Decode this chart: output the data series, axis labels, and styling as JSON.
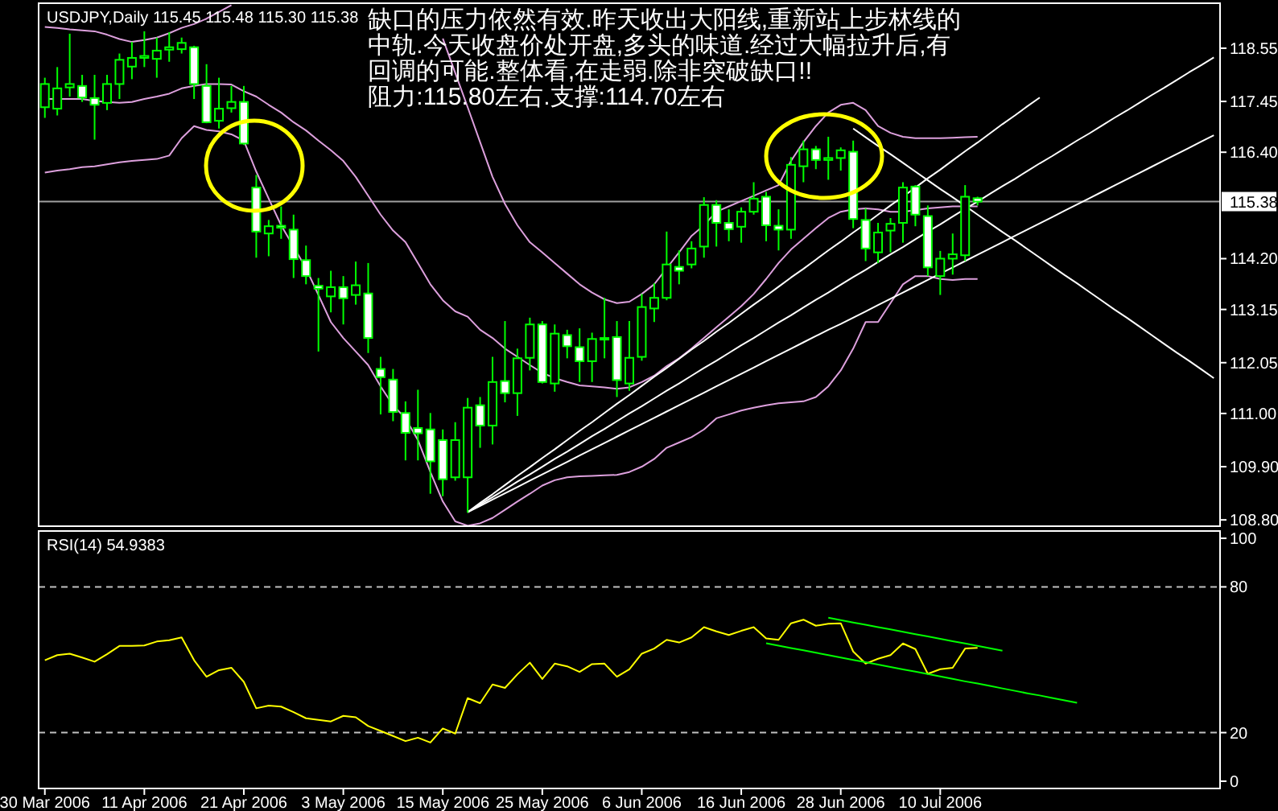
{
  "chart_data": [
    {
      "type": "candlestick",
      "title": "USDJPY,Daily  115.45 115.48 115.30 115.38",
      "annotations": [
        "缺口的压力依然有效.昨天收出大阳线,重新站上步林线的",
        "中轨.今天收盘价处开盘,多头的味道.经过大幅拉升后,有",
        "回调的可能.整体看,在走弱.除非突破缺口!!",
        "阻力:115.80左右.支撑:114.70左右"
      ],
      "color": "#00ff00",
      "categories": [
        null,
        null,
        null,
        null,
        null,
        null,
        null,
        null,
        null,
        null,
        null,
        null,
        null,
        null,
        null,
        null,
        null,
        null,
        null,
        null,
        null,
        null,
        null,
        null,
        null,
        null,
        null,
        null,
        null,
        null,
        null,
        null,
        null,
        null,
        null,
        null,
        null,
        null,
        null,
        null,
        null,
        null,
        null,
        null,
        null,
        null,
        null,
        null,
        null,
        null,
        null,
        null,
        null,
        null,
        null,
        null,
        null,
        null,
        null,
        null,
        null,
        null,
        null,
        null,
        null,
        null,
        null,
        null,
        null,
        null,
        null,
        null,
        null,
        null,
        null,
        null,
        null,
        null,
        null,
        null,
        null,
        null,
        null,
        null,
        null,
        null,
        null,
        null,
        null,
        null,
        null,
        null,
        null,
        null,
        null
      ],
      "ohlc": [
        [
          117.33,
          117.94,
          117.11,
          117.81
        ],
        [
          117.3,
          118.16,
          117.16,
          117.72
        ],
        [
          117.74,
          118.85,
          117.55,
          117.81
        ],
        [
          117.77,
          118.0,
          117.44,
          117.53
        ],
        [
          117.52,
          118.0,
          116.66,
          117.38
        ],
        [
          117.42,
          118.0,
          117.27,
          117.81
        ],
        [
          117.81,
          118.44,
          117.5,
          118.31
        ],
        [
          118.17,
          118.68,
          117.91,
          118.35
        ],
        [
          118.35,
          118.9,
          118.16,
          118.39
        ],
        [
          118.33,
          118.77,
          117.94,
          118.5
        ],
        [
          118.52,
          118.88,
          118.27,
          118.57
        ],
        [
          118.53,
          118.77,
          118.44,
          118.66
        ],
        [
          118.57,
          118.6,
          117.5,
          117.81
        ],
        [
          117.77,
          118.22,
          117.0,
          117.02
        ],
        [
          117.05,
          117.94,
          116.89,
          117.3
        ],
        [
          117.31,
          117.77,
          117.22,
          117.44
        ],
        [
          117.44,
          117.77,
          116.55,
          116.58
        ],
        [
          115.67,
          115.93,
          114.22,
          114.76
        ],
        [
          114.72,
          115.0,
          114.25,
          114.87
        ],
        [
          114.88,
          115.28,
          114.61,
          114.84
        ],
        [
          114.8,
          115.11,
          113.8,
          114.19
        ],
        [
          114.17,
          114.47,
          113.67,
          113.84
        ],
        [
          113.64,
          113.8,
          112.28,
          113.58
        ],
        [
          113.42,
          113.95,
          113.09,
          113.61
        ],
        [
          113.61,
          113.84,
          112.84,
          113.38
        ],
        [
          113.45,
          114.14,
          113.25,
          113.65
        ],
        [
          113.48,
          114.11,
          112.25,
          112.56
        ],
        [
          111.92,
          112.17,
          110.98,
          111.75
        ],
        [
          111.7,
          111.92,
          110.84,
          111.03
        ],
        [
          111.01,
          111.25,
          110.03,
          110.6
        ],
        [
          110.7,
          111.49,
          110.03,
          110.59
        ],
        [
          110.67,
          111.01,
          109.34,
          110.01
        ],
        [
          110.45,
          110.67,
          109.29,
          109.64
        ],
        [
          109.68,
          110.82,
          109.61,
          110.45
        ],
        [
          109.68,
          111.32,
          108.95,
          111.12
        ],
        [
          111.17,
          111.34,
          110.29,
          110.75
        ],
        [
          110.75,
          112.17,
          110.36,
          111.65
        ],
        [
          111.67,
          112.91,
          111.23,
          111.42
        ],
        [
          111.42,
          112.34,
          110.95,
          112.14
        ],
        [
          112.15,
          112.98,
          111.89,
          112.84
        ],
        [
          112.84,
          112.91,
          111.62,
          111.65
        ],
        [
          111.62,
          112.84,
          111.45,
          112.65
        ],
        [
          112.62,
          112.73,
          112.14,
          112.39
        ],
        [
          112.37,
          112.76,
          111.65,
          112.08
        ],
        [
          112.08,
          112.67,
          111.65,
          112.54
        ],
        [
          112.54,
          113.39,
          112.14,
          112.56
        ],
        [
          112.58,
          112.91,
          111.34,
          111.69
        ],
        [
          111.62,
          112.91,
          111.47,
          112.15
        ],
        [
          112.17,
          113.47,
          112.09,
          113.2
        ],
        [
          113.17,
          113.69,
          112.89,
          113.39
        ],
        [
          113.39,
          114.76,
          113.34,
          114.08
        ],
        [
          114.03,
          114.37,
          113.67,
          113.95
        ],
        [
          114.08,
          114.56,
          114.0,
          114.41
        ],
        [
          114.45,
          115.47,
          114.22,
          115.31
        ],
        [
          115.31,
          115.41,
          114.45,
          114.94
        ],
        [
          114.94,
          115.22,
          114.56,
          114.81
        ],
        [
          114.86,
          115.26,
          114.53,
          115.17
        ],
        [
          115.17,
          115.78,
          115.11,
          115.44
        ],
        [
          115.48,
          115.58,
          114.56,
          114.89
        ],
        [
          114.88,
          115.22,
          114.37,
          114.8
        ],
        [
          114.8,
          116.3,
          114.61,
          116.14
        ],
        [
          116.11,
          116.64,
          115.78,
          116.46
        ],
        [
          116.46,
          116.53,
          116.05,
          116.24
        ],
        [
          116.24,
          116.72,
          115.83,
          116.28
        ],
        [
          116.28,
          116.5,
          116.02,
          116.44
        ],
        [
          116.41,
          116.64,
          114.83,
          115.02
        ],
        [
          115.0,
          115.24,
          114.15,
          114.41
        ],
        [
          114.33,
          114.94,
          114.11,
          114.74
        ],
        [
          114.78,
          115.04,
          114.33,
          114.92
        ],
        [
          114.94,
          115.78,
          114.53,
          115.67
        ],
        [
          115.69,
          115.72,
          114.87,
          115.11
        ],
        [
          115.08,
          115.3,
          113.84,
          114.02
        ],
        [
          113.84,
          114.36,
          113.45,
          114.2
        ],
        [
          114.2,
          114.72,
          113.87,
          114.29
        ],
        [
          114.27,
          115.72,
          114.15,
          115.48
        ],
        [
          115.45,
          115.48,
          115.3,
          115.38
        ],
        null,
        null,
        null,
        null,
        null,
        null,
        null,
        null,
        null,
        null,
        null,
        null,
        null,
        null,
        null,
        null,
        null,
        null,
        null
      ],
      "series": [
        {
          "type": "line",
          "color": "#dda0dd",
          "values": [
            118.99,
            118.97,
            118.94,
            118.92,
            118.9,
            118.83,
            118.74,
            118.68,
            118.72,
            118.77,
            118.86,
            118.97,
            119.05,
            119.16,
            119.3,
            119.44,
            null,
            null,
            null,
            null,
            null,
            null,
            null,
            null,
            null,
            null,
            null,
            null,
            null,
            null,
            null,
            null,
            118.75,
            118.04,
            117.33,
            116.61,
            115.89,
            115.33,
            114.89,
            114.54,
            114.33,
            114.11,
            113.89,
            113.67,
            113.5,
            113.36,
            113.28,
            113.31,
            113.47,
            113.67,
            114.0,
            114.33,
            114.67,
            114.89,
            115.17,
            115.28,
            115.39,
            115.5,
            115.61,
            115.72,
            116.22,
            116.61,
            116.94,
            117.22,
            117.38,
            117.42,
            117.27,
            116.94,
            116.8,
            116.72,
            116.69,
            116.69,
            116.69,
            116.7,
            116.71,
            116.72,
            null,
            null,
            null,
            null,
            null,
            null,
            null,
            null,
            null,
            null,
            null,
            null,
            null,
            null,
            null,
            null,
            null,
            null,
            null
          ]
        },
        {
          "type": "line",
          "color": "#dda0dd",
          "values": [
            117.5,
            117.5,
            117.5,
            117.5,
            117.46,
            117.44,
            117.42,
            117.44,
            117.5,
            117.55,
            117.61,
            117.72,
            117.77,
            117.81,
            117.81,
            117.8,
            117.66,
            117.55,
            117.38,
            117.22,
            117.02,
            116.85,
            116.64,
            116.44,
            116.22,
            115.89,
            115.5,
            115.11,
            114.78,
            114.54,
            114.11,
            113.67,
            113.34,
            113.11,
            113.0,
            112.73,
            112.56,
            112.34,
            112.17,
            112.0,
            111.84,
            111.73,
            111.65,
            111.58,
            111.56,
            111.54,
            111.51,
            111.54,
            111.65,
            111.78,
            111.98,
            112.14,
            112.34,
            112.56,
            112.78,
            113.0,
            113.22,
            113.47,
            113.78,
            114.11,
            114.39,
            114.61,
            114.83,
            115.04,
            115.17,
            115.22,
            115.24,
            115.22,
            115.17,
            115.17,
            115.2,
            115.24,
            115.26,
            115.28,
            115.28,
            115.28,
            null,
            null,
            null,
            null,
            null,
            null,
            null,
            null,
            null,
            null,
            null,
            null,
            null,
            null,
            null,
            null,
            null,
            null,
            null
          ]
        },
        {
          "type": "line",
          "color": "#dda0dd",
          "values": [
            115.98,
            116.02,
            116.05,
            116.09,
            116.11,
            116.15,
            116.19,
            116.22,
            116.24,
            116.26,
            116.33,
            116.69,
            116.94,
            116.86,
            116.83,
            116.77,
            116.64,
            116.0,
            115.44,
            114.89,
            114.45,
            114.0,
            113.45,
            112.89,
            112.56,
            112.28,
            112.0,
            111.56,
            111.17,
            110.9,
            110.45,
            109.79,
            109.18,
            108.77,
            108.68,
            108.73,
            108.84,
            109.01,
            109.18,
            109.34,
            109.51,
            109.62,
            109.68,
            109.7,
            109.71,
            109.72,
            109.73,
            109.79,
            109.9,
            110.06,
            110.29,
            110.4,
            110.51,
            110.67,
            110.9,
            110.98,
            111.06,
            111.12,
            111.17,
            111.21,
            111.23,
            111.25,
            111.34,
            111.56,
            111.89,
            112.34,
            112.89,
            112.89,
            113.28,
            113.67,
            113.84,
            113.84,
            113.78,
            113.76,
            113.78,
            113.78,
            null,
            null,
            null,
            null,
            null,
            null,
            null,
            null,
            null,
            null,
            null,
            null,
            null,
            null,
            null,
            null,
            null,
            null,
            null
          ]
        },
        {
          "type": "line",
          "color": "#ffffff",
          "values": [
            null,
            null,
            null,
            null,
            null,
            null,
            null,
            null,
            null,
            null,
            null,
            null,
            null,
            null,
            null,
            null,
            null,
            null,
            null,
            null,
            null,
            null,
            null,
            null,
            null,
            null,
            null,
            null,
            null,
            null,
            null,
            null,
            null,
            null,
            108.96,
            109.15,
            109.33,
            109.52,
            109.71,
            109.89,
            110.08,
            110.26,
            110.45,
            110.64,
            110.82,
            111.01,
            111.2,
            111.38,
            111.57,
            111.76,
            111.94,
            112.13,
            112.32,
            112.5,
            112.69,
            112.87,
            113.06,
            113.25,
            113.43,
            113.62,
            113.81,
            113.99,
            114.18,
            114.37,
            114.55,
            114.74,
            114.92,
            115.11,
            115.3,
            115.48,
            115.67,
            115.86,
            116.04,
            116.23,
            116.42,
            116.6,
            116.79,
            116.98,
            117.16,
            117.35,
            117.53,
            null,
            null,
            null,
            null,
            null,
            null,
            null,
            null,
            null,
            null,
            null,
            null,
            null,
            null
          ]
        },
        {
          "type": "line",
          "color": "#ffffff",
          "values": [
            null,
            null,
            null,
            null,
            null,
            null,
            null,
            null,
            null,
            null,
            null,
            null,
            null,
            null,
            null,
            null,
            null,
            null,
            null,
            null,
            null,
            null,
            null,
            null,
            null,
            null,
            null,
            null,
            null,
            null,
            null,
            null,
            null,
            null,
            108.96,
            109.12,
            109.27,
            109.43,
            109.59,
            109.74,
            109.9,
            110.06,
            110.21,
            110.37,
            110.53,
            110.68,
            110.84,
            111.0,
            111.15,
            111.31,
            111.47,
            111.62,
            111.78,
            111.94,
            112.09,
            112.25,
            112.41,
            112.56,
            112.72,
            112.88,
            113.03,
            113.19,
            113.35,
            113.5,
            113.66,
            113.82,
            113.97,
            114.13,
            114.29,
            114.44,
            114.6,
            114.76,
            114.91,
            115.07,
            115.23,
            115.38,
            115.54,
            115.7,
            115.85,
            116.01,
            116.17,
            116.32,
            116.48,
            116.64,
            116.79,
            116.95,
            117.11,
            117.26,
            117.42,
            117.58,
            117.73,
            117.89,
            118.05,
            118.2,
            118.36
          ]
        },
        {
          "type": "line",
          "color": "#ffffff",
          "values": [
            null,
            null,
            null,
            null,
            null,
            null,
            null,
            null,
            null,
            null,
            null,
            null,
            null,
            null,
            null,
            null,
            null,
            null,
            null,
            null,
            null,
            null,
            null,
            null,
            null,
            null,
            null,
            null,
            null,
            null,
            null,
            null,
            null,
            null,
            108.96,
            109.09,
            109.22,
            109.35,
            109.48,
            109.61,
            109.74,
            109.87,
            110.0,
            110.13,
            110.26,
            110.39,
            110.52,
            110.65,
            110.78,
            110.91,
            111.04,
            111.17,
            111.3,
            111.43,
            111.56,
            111.69,
            111.82,
            111.95,
            112.08,
            112.21,
            112.34,
            112.47,
            112.6,
            112.73,
            112.85,
            112.98,
            113.11,
            113.24,
            113.37,
            113.5,
            113.63,
            113.76,
            113.89,
            114.02,
            114.15,
            114.28,
            114.41,
            114.54,
            114.67,
            114.8,
            114.93,
            115.06,
            115.19,
            115.32,
            115.45,
            115.58,
            115.71,
            115.84,
            115.97,
            116.1,
            116.23,
            116.36,
            116.49,
            116.62,
            116.75
          ]
        },
        {
          "type": "line",
          "color": "#ffffff",
          "values": [
            null,
            null,
            null,
            null,
            null,
            null,
            null,
            null,
            null,
            null,
            null,
            null,
            null,
            null,
            null,
            null,
            null,
            null,
            null,
            null,
            null,
            null,
            null,
            null,
            null,
            null,
            null,
            null,
            null,
            null,
            null,
            null,
            null,
            null,
            null,
            null,
            null,
            null,
            null,
            null,
            null,
            null,
            null,
            null,
            null,
            null,
            null,
            null,
            null,
            null,
            null,
            null,
            null,
            null,
            null,
            null,
            null,
            null,
            null,
            null,
            null,
            null,
            null,
            null,
            null,
            116.89,
            116.71,
            116.53,
            116.36,
            116.18,
            116.0,
            115.82,
            115.64,
            115.47,
            115.29,
            115.11,
            114.93,
            114.75,
            114.58,
            114.4,
            114.22,
            114.04,
            113.86,
            113.69,
            113.51,
            113.33,
            113.15,
            112.98,
            112.8,
            112.62,
            112.44,
            112.26,
            112.09,
            111.91,
            111.73
          ]
        }
      ],
      "ylim": [
        108.67,
        119.48
      ],
      "yticks": [
        118.55,
        117.45,
        {
          "value": 116.4,
          "label": "116.40"
        },
        {
          "value": 114.2,
          "label": "114.20"
        },
        113.15,
        112.05,
        {
          "value": 111,
          "label": "111.00"
        },
        {
          "value": 109.9,
          "label": "109.90"
        },
        {
          "value": 108.8,
          "label": "108.80"
        }
      ],
      "ref_lines": [
        {
          "axis": "y",
          "value": 115.38,
          "label": "115.38",
          "color": "#a0a0a0"
        }
      ],
      "tick_labels": "y"
    },
    {
      "type": "line",
      "title": "RSI(14) 54.9383",
      "categories": [
        "30 Mar 2006",
        null,
        null,
        null,
        null,
        null,
        null,
        null,
        "11 Apr 2006",
        null,
        null,
        null,
        null,
        null,
        null,
        null,
        "21 Apr 2006",
        null,
        null,
        null,
        null,
        null,
        null,
        null,
        "3 May 2006",
        null,
        null,
        null,
        null,
        null,
        null,
        null,
        "15 May 2006",
        null,
        null,
        null,
        null,
        null,
        null,
        null,
        "25 May 2006",
        null,
        null,
        null,
        null,
        null,
        null,
        null,
        "6 Jun 2006",
        null,
        null,
        null,
        null,
        null,
        null,
        null,
        "16 Jun 2006",
        null,
        null,
        null,
        null,
        null,
        null,
        null,
        "28 Jun 2006",
        null,
        null,
        null,
        null,
        null,
        null,
        null,
        "10 Jul 2006",
        null,
        null,
        null,
        null,
        null,
        null,
        null,
        null,
        null,
        null,
        null,
        null,
        null,
        null,
        null,
        null,
        null,
        null,
        null,
        null,
        null,
        null
      ],
      "series": [
        {
          "color": "#ffff00",
          "values": [
            49.8,
            51.9,
            52.5,
            50.9,
            49.2,
            52.3,
            55.7,
            55.7,
            55.9,
            57.5,
            58.0,
            59.2,
            49.8,
            43.0,
            45.7,
            46.7,
            40.9,
            30.0,
            31.1,
            30.7,
            28.4,
            25.9,
            25.2,
            24.6,
            26.9,
            26.3,
            22.7,
            20.7,
            18.6,
            16.5,
            17.9,
            15.9,
            21.7,
            19.6,
            34.2,
            32.1,
            39.8,
            38.4,
            44.0,
            48.8,
            42.1,
            48.4,
            47.3,
            45.0,
            48.2,
            48.4,
            43.0,
            46.1,
            52.5,
            54.6,
            58.2,
            57.1,
            59.2,
            63.4,
            61.7,
            60.2,
            61.9,
            63.4,
            58.8,
            58.2,
            65.0,
            66.5,
            64.0,
            64.8,
            65.0,
            53.4,
            48.4,
            50.4,
            51.9,
            56.7,
            54.4,
            44.2,
            46.1,
            46.7,
            54.6,
            54.9,
            null,
            null,
            null,
            null,
            null,
            null,
            null,
            null,
            null,
            null,
            null,
            null,
            null,
            null,
            null,
            null,
            null,
            null,
            null
          ]
        },
        {
          "type": "line",
          "color": "#00ff00",
          "values": [
            null,
            null,
            null,
            null,
            null,
            null,
            null,
            null,
            null,
            null,
            null,
            null,
            null,
            null,
            null,
            null,
            null,
            null,
            null,
            null,
            null,
            null,
            null,
            null,
            null,
            null,
            null,
            null,
            null,
            null,
            null,
            null,
            null,
            null,
            null,
            null,
            null,
            null,
            null,
            null,
            null,
            null,
            null,
            null,
            null,
            null,
            null,
            null,
            null,
            null,
            null,
            null,
            null,
            null,
            null,
            null,
            null,
            null,
            null,
            null,
            null,
            null,
            null,
            67.3,
            66.3,
            65.3,
            64.4,
            63.4,
            62.5,
            61.5,
            60.5,
            59.6,
            58.6,
            57.6,
            56.7,
            55.7,
            54.7,
            53.7,
            null,
            null,
            null,
            null,
            null,
            null,
            null,
            null,
            null,
            null,
            null,
            null,
            null,
            null,
            null,
            null,
            null
          ]
        },
        {
          "type": "line",
          "color": "#00ff00",
          "values": [
            null,
            null,
            null,
            null,
            null,
            null,
            null,
            null,
            null,
            null,
            null,
            null,
            null,
            null,
            null,
            null,
            null,
            null,
            null,
            null,
            null,
            null,
            null,
            null,
            null,
            null,
            null,
            null,
            null,
            null,
            null,
            null,
            null,
            null,
            null,
            null,
            null,
            null,
            null,
            null,
            null,
            null,
            null,
            null,
            null,
            null,
            null,
            null,
            null,
            null,
            null,
            null,
            null,
            null,
            null,
            null,
            null,
            null,
            56.8,
            55.8,
            54.8,
            53.9,
            52.9,
            51.9,
            50.9,
            49.9,
            49.0,
            48.0,
            47.0,
            46.0,
            45.1,
            44.1,
            43.1,
            42.1,
            41.1,
            40.2,
            39.2,
            38.2,
            37.2,
            36.2,
            35.3,
            34.3,
            33.3,
            32.3,
            null,
            null,
            null,
            null,
            null,
            null,
            null,
            null,
            null,
            null,
            null
          ]
        }
      ],
      "ylim": [
        -3,
        103
      ],
      "yticks": [
        100,
        80,
        20,
        0
      ],
      "ref_lines": [
        {
          "axis": "y",
          "value": 80,
          "color": "#c0c0c0",
          "line_style": "dashed"
        },
        {
          "axis": "y",
          "value": 20,
          "color": "#c0c0c0",
          "line_style": "dashed"
        }
      ]
    }
  ]
}
